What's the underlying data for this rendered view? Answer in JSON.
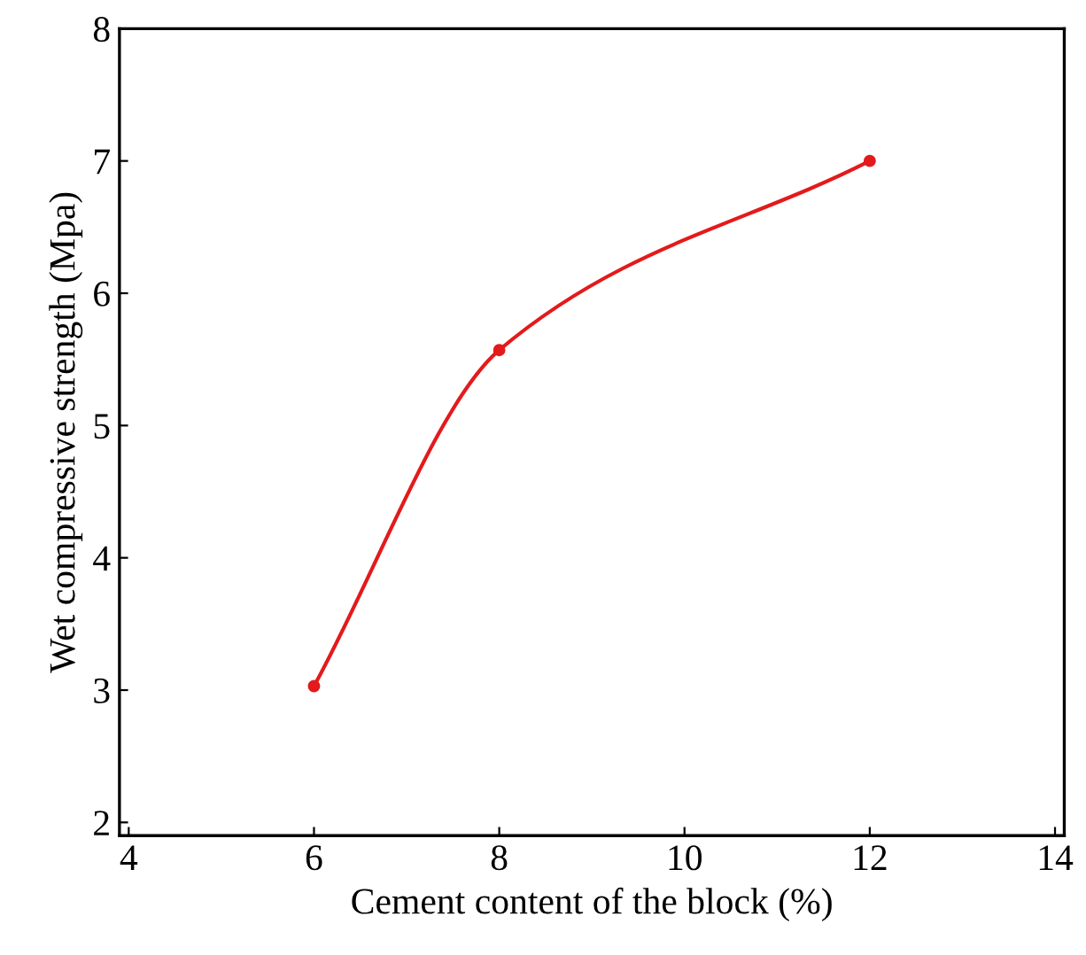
{
  "chart_data": {
    "type": "line",
    "xlabel": "Cement content of the block (%)",
    "ylabel": "Wet compressive strength (Mpa)",
    "x": [
      6,
      8,
      12
    ],
    "series": [
      {
        "color": "#e31a1c",
        "values": [
          3.03,
          5.57,
          7.0
        ]
      }
    ],
    "xlim": [
      3.9,
      14.1
    ],
    "xticks": [
      4,
      6,
      8,
      10,
      12,
      14
    ],
    "ylim": [
      1.9,
      8
    ],
    "yticks": [
      2,
      3,
      4,
      5,
      6,
      7,
      8
    ],
    "marker": "circle",
    "line_style": "solid",
    "grid": false
  }
}
